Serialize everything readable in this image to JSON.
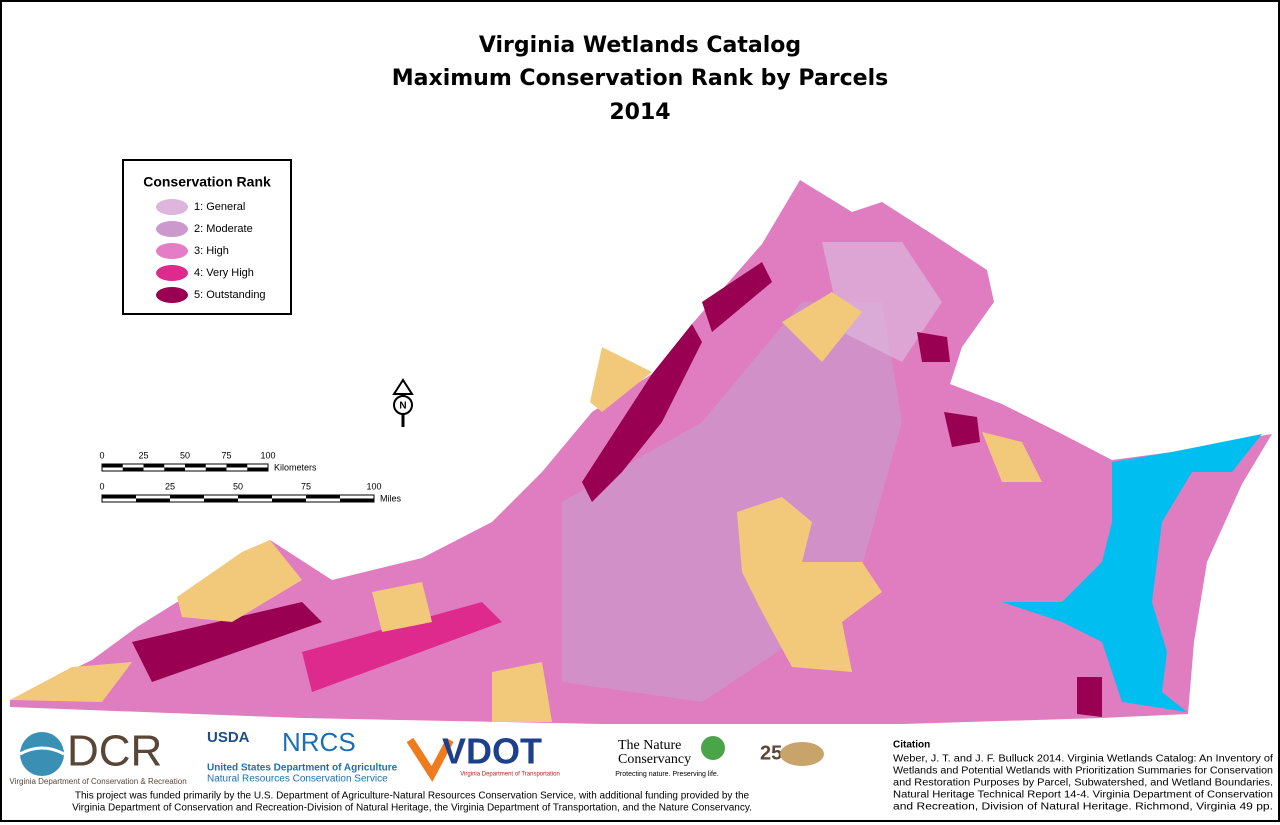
{
  "header": {
    "title_lines": [
      "Virginia Wetlands Catalog",
      "Maximum Conservation Rank by Parcels",
      "2014"
    ]
  },
  "legend": {
    "title": "Conservation Rank",
    "items": [
      {
        "label": "1: General",
        "color": "#dcb6dc"
      },
      {
        "label": "2: Moderate",
        "color": "#cc99cc"
      },
      {
        "label": "3: High",
        "color": "#e57cc6"
      },
      {
        "label": "4: Very High",
        "color": "#dd2a8c"
      },
      {
        "label": "5: Outstanding",
        "color": "#990052"
      }
    ]
  },
  "compass": {
    "label": "N"
  },
  "scale": {
    "kilometers": {
      "ticks": [
        0,
        25,
        50,
        75,
        100
      ],
      "unit": "Kilometers"
    },
    "miles": {
      "ticks": [
        0,
        25,
        50,
        75,
        100
      ],
      "unit": "Miles"
    }
  },
  "logos": {
    "dcr": {
      "name": "DCR",
      "caption": "Virginia Department of Conservation & Recreation"
    },
    "usda": {
      "name": "USDA",
      "agency": "NRCS",
      "line1": "United States Department of Agriculture",
      "line2": "Natural Resources Conservation Service"
    },
    "vdot": {
      "name": "VDOT",
      "caption": "Virginia Department of Transportation"
    },
    "tnc": {
      "name_line1": "The Nature",
      "name_line2": "Conservancy",
      "tagline": "Protecting nature. Preserving life."
    },
    "dnh": {
      "name": "25"
    }
  },
  "funding": [
    "This project was funded primarily by the U.S. Department of Agriculture-Natural Resources Conservation Service, with additional funding provided by the",
    "Virginia Department of Conservation and Recreation-Division of Natural Heritage, the Virginia Department of Transportation, and the Nature Conservancy."
  ],
  "citation": {
    "heading": "Citation",
    "lines": [
      "Weber, J. T. and J. F. Bulluck 2014. Virginia Wetlands Catalog: An Inventory of",
      "Wetlands and Potential Wetlands with Prioritization Summaries for Conservation",
      "and Restoration Purposes by Parcel, Subwatershed, and Wetland Boundaries.",
      "Natural Heritage Technical Report 14-4. Virginia Department of Conservation",
      "and Recreation, Division of Natural Heritage. Richmond, Virginia 49 pp."
    ]
  }
}
